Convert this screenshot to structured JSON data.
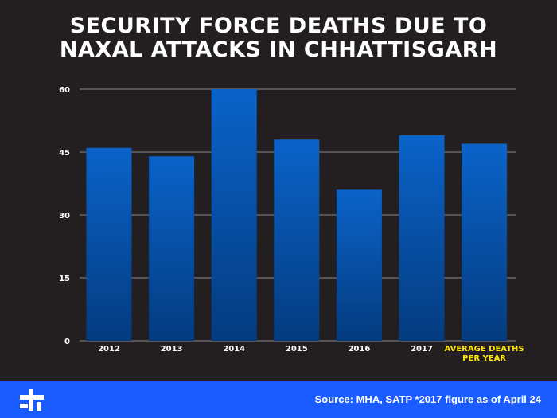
{
  "title_lines": [
    "SECURITY FORCE DEATHS DUE TO",
    "NAXAL ATTACKS IN CHHATTISGARH"
  ],
  "source": "Source: MHA, SATP *2017 figure as of April 24",
  "colors": {
    "background": "#231f20",
    "bar_top": "#0a63c9",
    "bar_bottom": "#043b7f",
    "footer": "#1a5cff",
    "highlight_label": "#ffe600",
    "grid": "#8a8a8a"
  },
  "chart_data": {
    "type": "bar",
    "categories": [
      "2012",
      "2013",
      "2014",
      "2015",
      "2016",
      "2017",
      "AVERAGE DEATHS PER YEAR"
    ],
    "values": [
      46,
      44,
      60,
      48,
      36,
      49,
      47
    ],
    "highlight_category": "AVERAGE DEATHS PER YEAR",
    "ylim": [
      0,
      60
    ],
    "yticks": [
      0,
      15,
      30,
      45,
      60
    ],
    "grid": true,
    "title": "",
    "xlabel": "",
    "ylabel": ""
  }
}
